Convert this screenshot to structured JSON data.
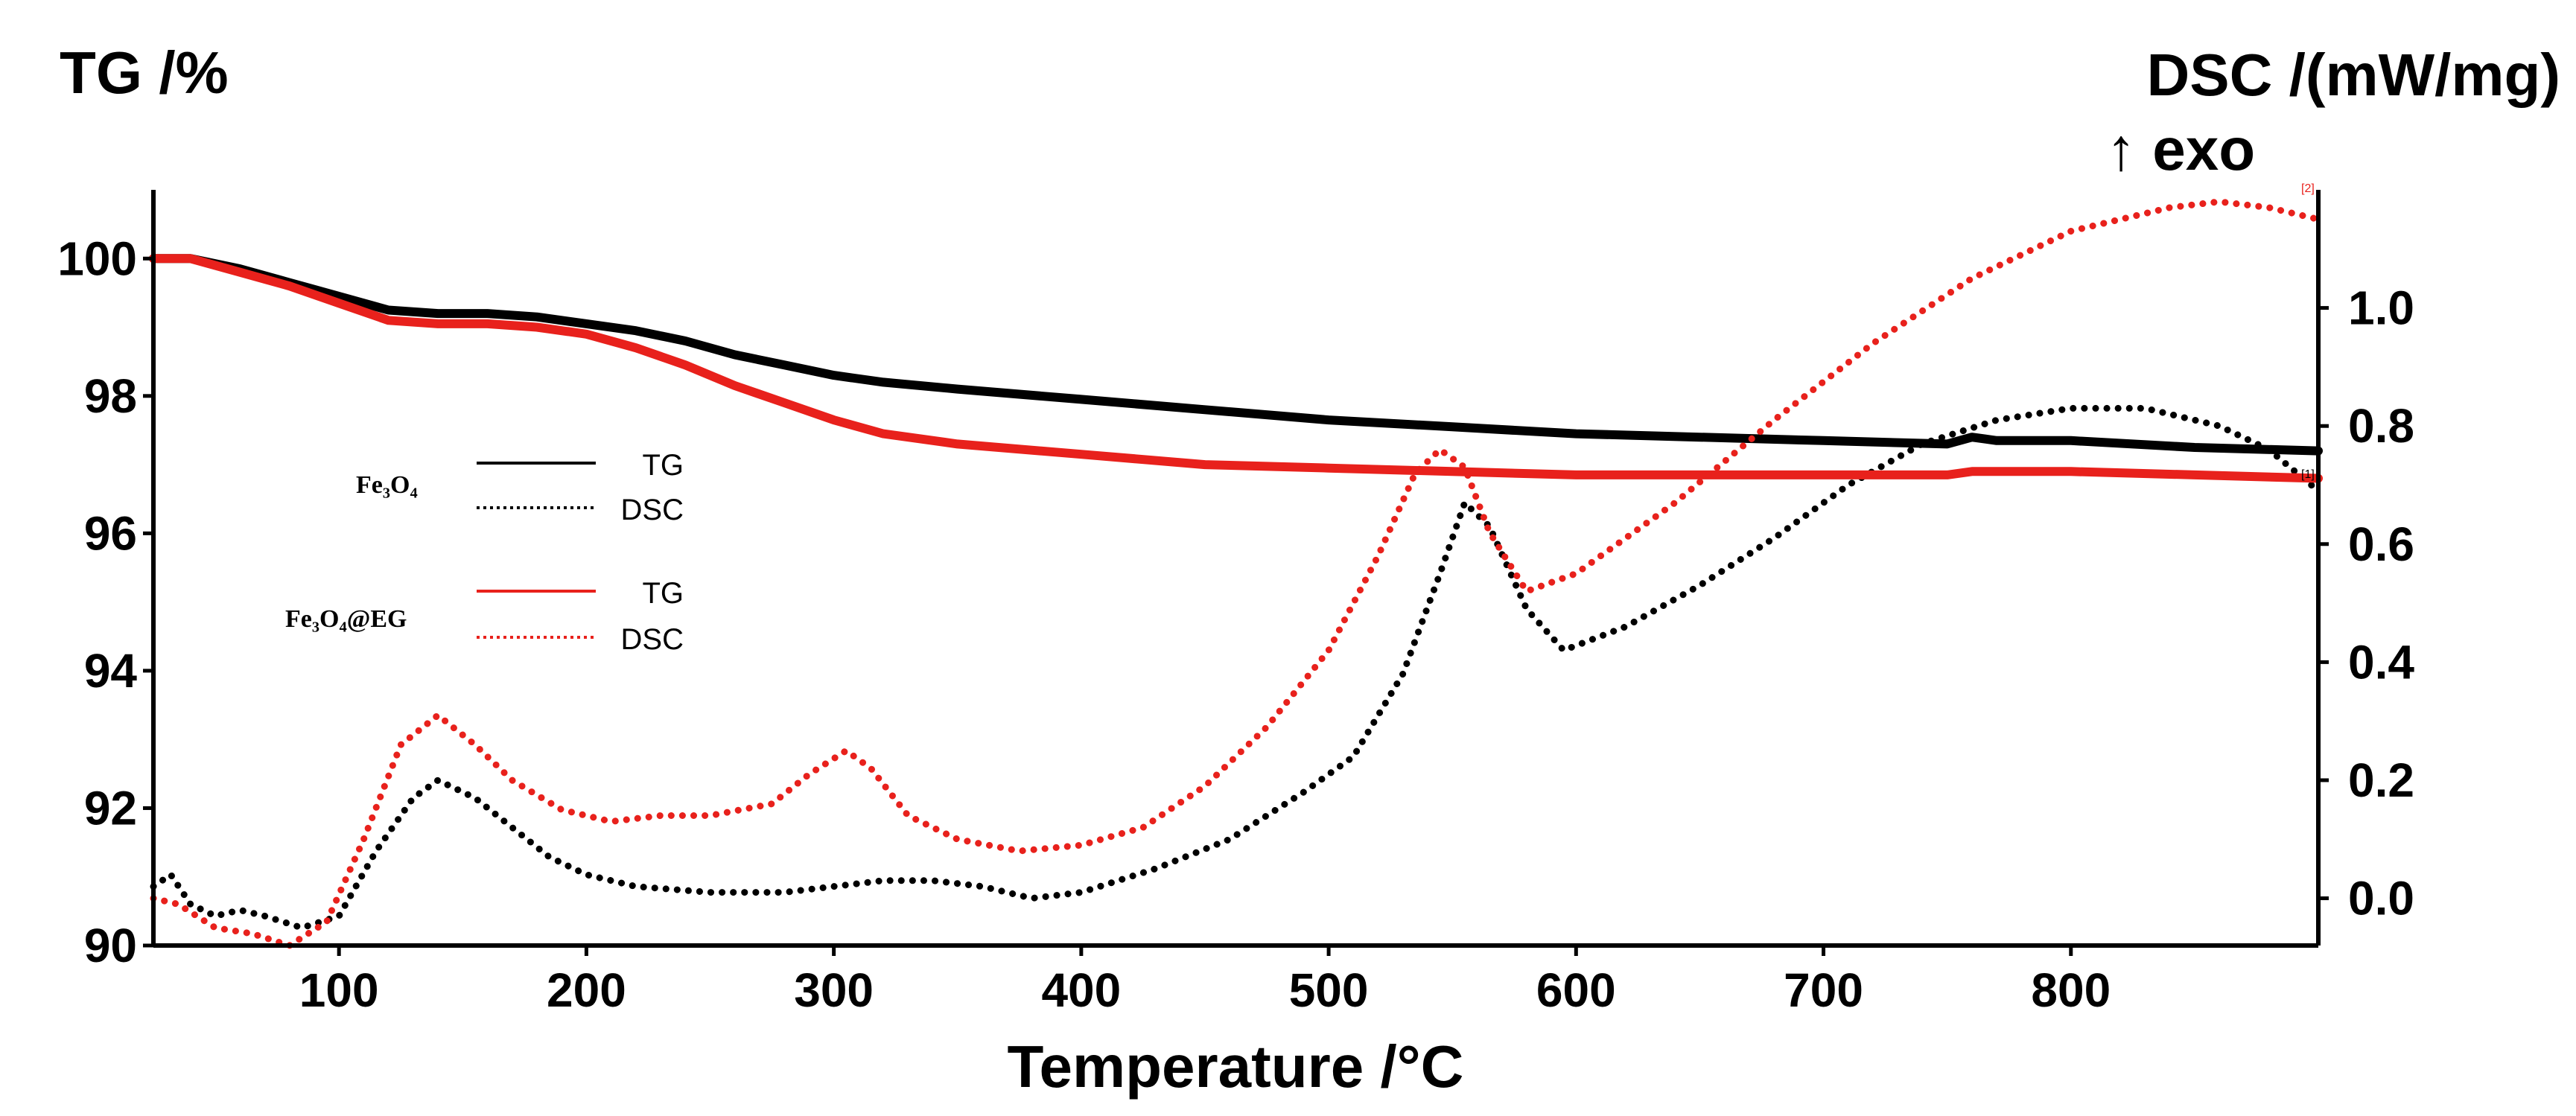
{
  "chart_data": {
    "type": "line",
    "title": "",
    "xlabel": "Temperature /°C",
    "ylabel_left": "TG /%",
    "ylabel_right": "DSC /(mW/mg)",
    "ylabel_right_sub": "↑ exo",
    "xlim": [
      25,
      900
    ],
    "ylim_left": [
      90,
      101
    ],
    "ylim_right": [
      -0.08,
      1.2
    ],
    "x_ticks": [
      100,
      200,
      300,
      400,
      500,
      600,
      700,
      800
    ],
    "y_left_ticks": [
      90,
      92,
      94,
      96,
      98,
      100
    ],
    "y_right_ticks": [
      0.0,
      0.2,
      0.4,
      0.6,
      0.8,
      1.0
    ],
    "y_left_tick_labels": [
      "90",
      "92",
      "94",
      "96",
      "98",
      "100"
    ],
    "y_right_tick_labels": [
      "0.0",
      "0.2",
      "0.4",
      "0.6",
      "0.8",
      "1.0"
    ],
    "grid": false,
    "legend_position": "middle-left",
    "legend": [
      {
        "sample": "Fe3O4",
        "sample_display": "Fe₃O₄",
        "entries": [
          "TG",
          "DSC"
        ],
        "color": "#000000"
      },
      {
        "sample": "Fe3O4@EG",
        "sample_display": "Fe₃O₄@EG",
        "entries": [
          "TG",
          "DSC"
        ],
        "color": "#e8211c"
      }
    ],
    "end_markers": [
      "[1]",
      "[2]"
    ],
    "series": [
      {
        "name": "Fe3O4 TG",
        "axis": "left",
        "style": "solid",
        "color": "#000000",
        "x": [
          25,
          40,
          60,
          80,
          100,
          120,
          140,
          160,
          180,
          200,
          220,
          240,
          260,
          280,
          300,
          320,
          350,
          400,
          450,
          500,
          550,
          600,
          650,
          700,
          750,
          760,
          770,
          800,
          850,
          900
        ],
        "y": [
          100.0,
          100.0,
          99.85,
          99.65,
          99.45,
          99.25,
          99.2,
          99.2,
          99.15,
          99.05,
          98.95,
          98.8,
          98.6,
          98.45,
          98.3,
          98.2,
          98.1,
          97.95,
          97.8,
          97.65,
          97.55,
          97.45,
          97.4,
          97.35,
          97.3,
          97.4,
          97.35,
          97.35,
          97.25,
          97.2
        ]
      },
      {
        "name": "Fe3O4 DSC",
        "axis": "right",
        "style": "dotted",
        "color": "#000000",
        "x": [
          25,
          32,
          40,
          50,
          60,
          70,
          85,
          100,
          115,
          130,
          140,
          155,
          170,
          185,
          200,
          220,
          250,
          280,
          300,
          320,
          340,
          360,
          380,
          400,
          430,
          460,
          490,
          510,
          530,
          545,
          555,
          565,
          580,
          595,
          620,
          650,
          680,
          710,
          740,
          770,
          800,
          830,
          860,
          880,
          900
        ],
        "y": [
          0.02,
          0.04,
          -0.01,
          -0.03,
          -0.02,
          -0.03,
          -0.05,
          -0.03,
          0.08,
          0.17,
          0.2,
          0.17,
          0.12,
          0.07,
          0.04,
          0.02,
          0.01,
          0.01,
          0.02,
          0.03,
          0.03,
          0.02,
          0.0,
          0.01,
          0.05,
          0.1,
          0.18,
          0.24,
          0.38,
          0.55,
          0.67,
          0.63,
          0.49,
          0.42,
          0.46,
          0.53,
          0.61,
          0.7,
          0.77,
          0.81,
          0.83,
          0.83,
          0.8,
          0.76,
          0.69
        ]
      },
      {
        "name": "Fe3O4@EG TG",
        "axis": "left",
        "style": "solid",
        "color": "#e8211c",
        "x": [
          25,
          40,
          60,
          80,
          100,
          120,
          140,
          160,
          180,
          200,
          220,
          240,
          260,
          280,
          300,
          320,
          350,
          400,
          450,
          500,
          550,
          600,
          650,
          700,
          750,
          760,
          800,
          850,
          900
        ],
        "y": [
          100.0,
          100.0,
          99.8,
          99.6,
          99.35,
          99.1,
          99.05,
          99.05,
          99.0,
          98.9,
          98.7,
          98.45,
          98.15,
          97.9,
          97.65,
          97.45,
          97.3,
          97.15,
          97.0,
          96.95,
          96.9,
          96.85,
          96.85,
          96.85,
          96.85,
          96.9,
          96.9,
          96.85,
          96.8
        ]
      },
      {
        "name": "Fe3O4@EG DSC",
        "axis": "right",
        "style": "dotted",
        "color": "#e8211c",
        "x": [
          25,
          35,
          50,
          65,
          80,
          95,
          110,
          125,
          140,
          155,
          170,
          190,
          210,
          230,
          250,
          275,
          290,
          305,
          315,
          330,
          350,
          375,
          400,
          425,
          450,
          475,
          500,
          520,
          535,
          545,
          555,
          565,
          580,
          600,
          640,
          680,
          720,
          760,
          800,
          840,
          860,
          880,
          900
        ],
        "y": [
          0.0,
          -0.01,
          -0.05,
          -0.06,
          -0.08,
          -0.04,
          0.1,
          0.26,
          0.31,
          0.26,
          0.2,
          0.15,
          0.13,
          0.14,
          0.14,
          0.16,
          0.21,
          0.25,
          0.22,
          0.14,
          0.1,
          0.08,
          0.09,
          0.12,
          0.19,
          0.29,
          0.42,
          0.58,
          0.72,
          0.76,
          0.73,
          0.62,
          0.52,
          0.55,
          0.67,
          0.81,
          0.94,
          1.05,
          1.13,
          1.17,
          1.18,
          1.17,
          1.15
        ]
      }
    ]
  }
}
